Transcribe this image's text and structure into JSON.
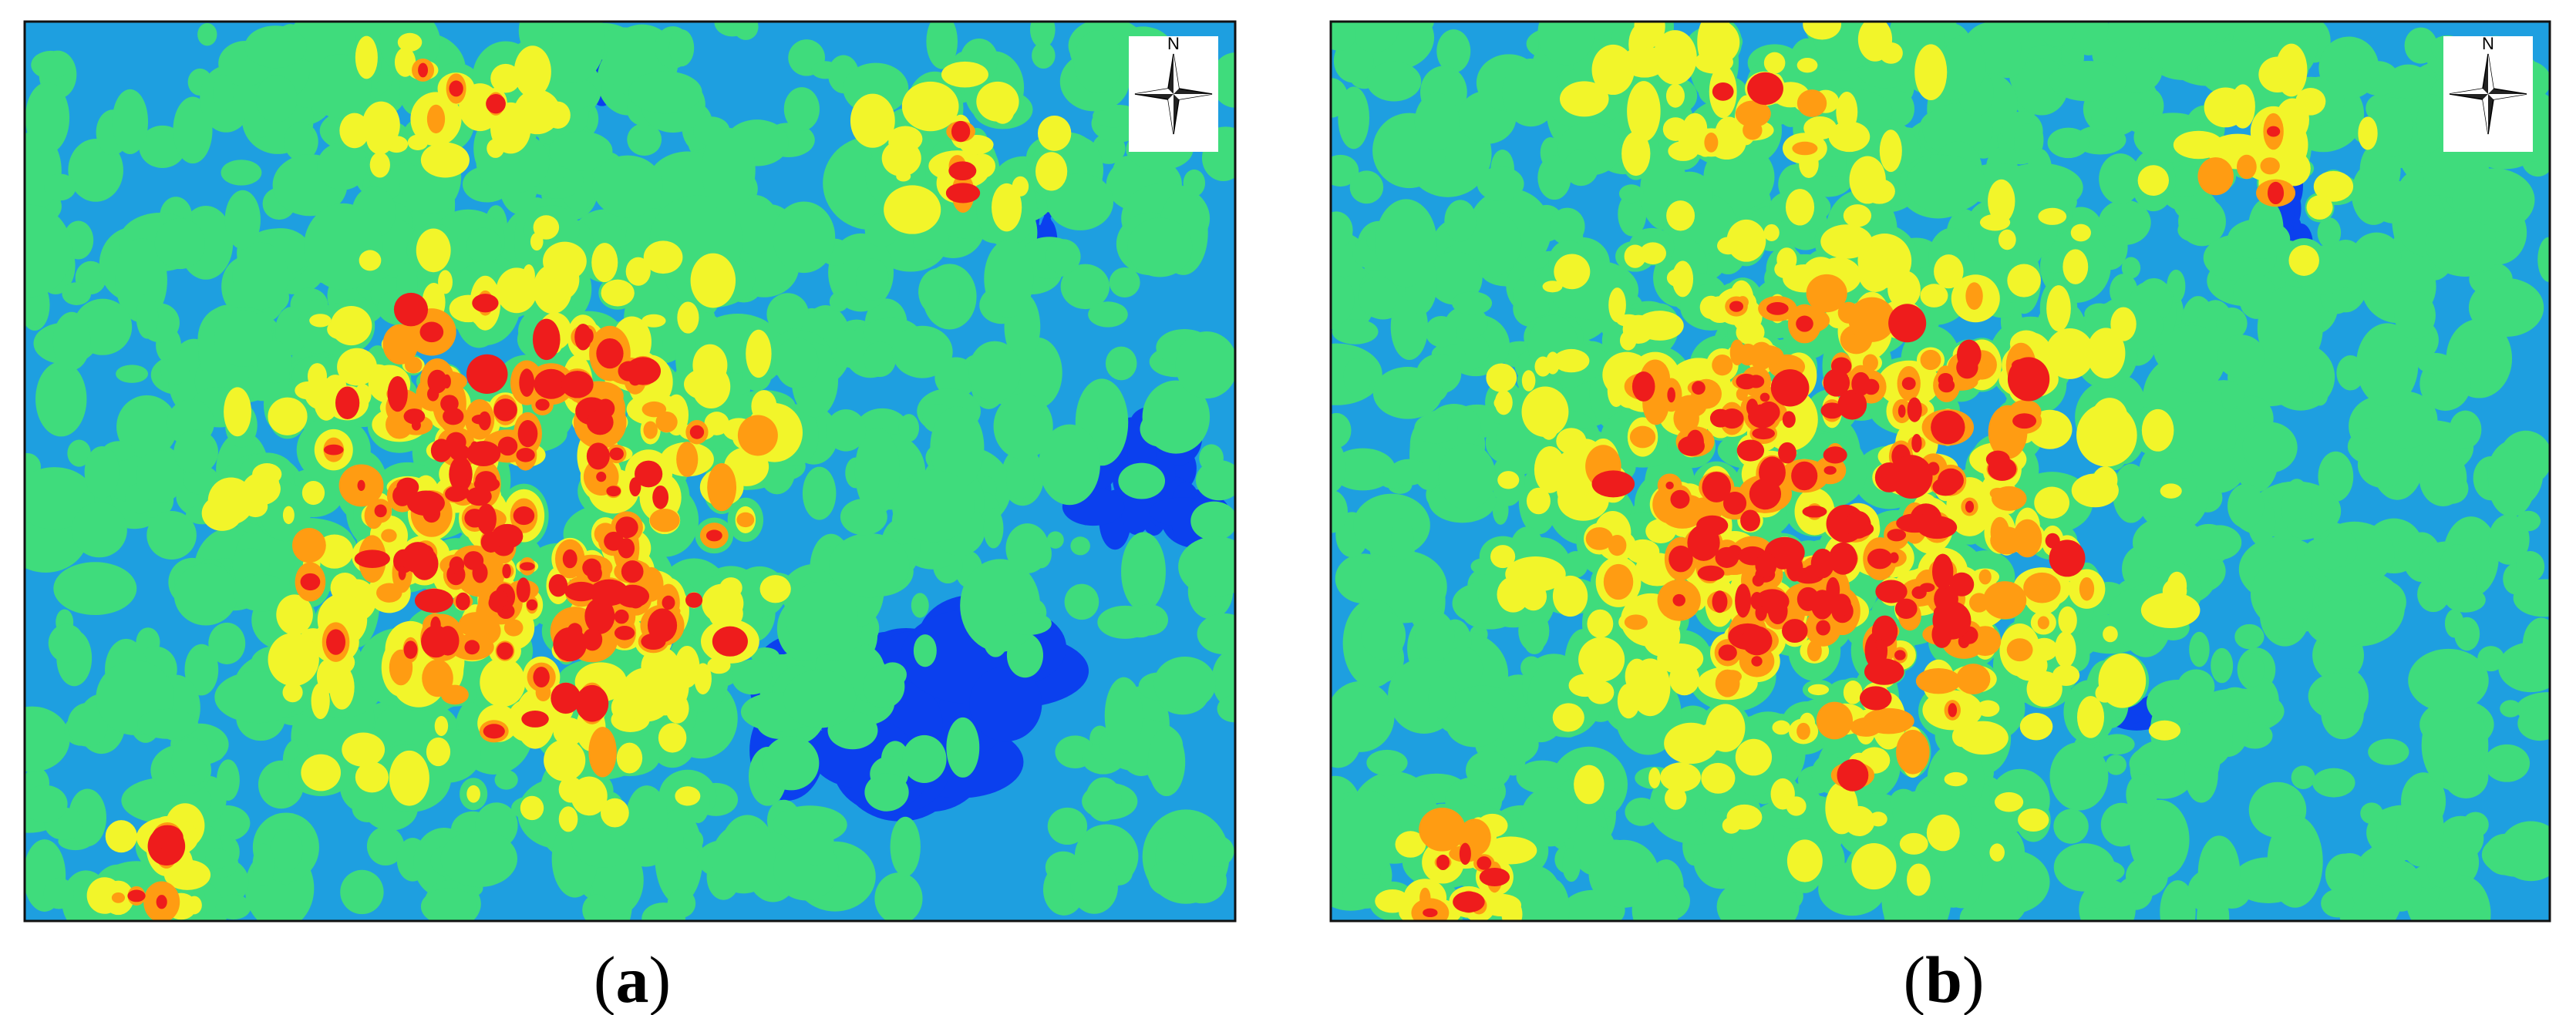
{
  "panels": [
    {
      "compass": "N",
      "caption": {
        "open": "(",
        "letter": "a",
        "close": ")"
      }
    },
    {
      "compass": "N",
      "caption": {
        "open": "(",
        "letter": "b",
        "close": ")"
      }
    }
  ]
}
